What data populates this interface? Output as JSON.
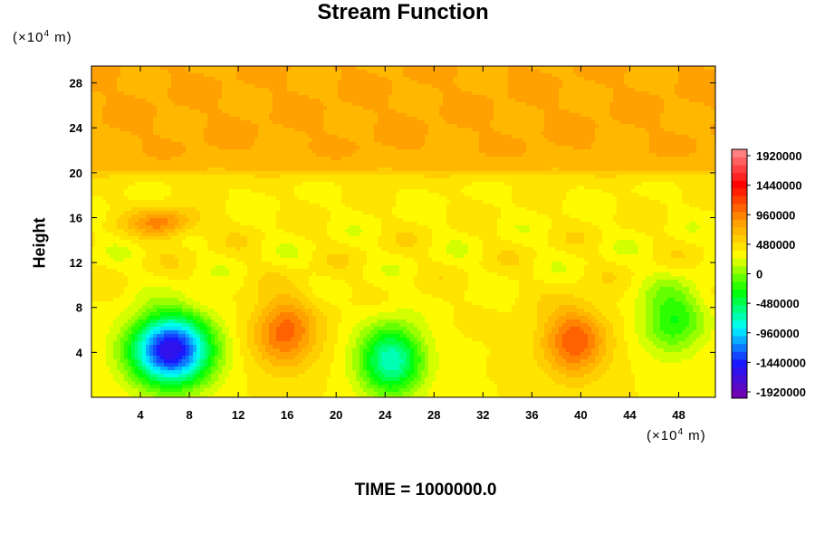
{
  "title": "Stream Function",
  "y_unit": {
    "prefix": "(×10",
    "exp": "4",
    "suffix": " m)"
  },
  "x_unit": {
    "prefix": "(×10",
    "exp": "4",
    "suffix": " m)"
  },
  "ylabel": "Height",
  "footer": "TIME = 1000000.0",
  "chart_data": {
    "type": "heatmap",
    "title": "Stream Function",
    "xlabel": "",
    "ylabel": "Height",
    "x_unit": "×10^4 m",
    "y_unit": "×10^4 m",
    "xlim": [
      0,
      51
    ],
    "ylim": [
      0,
      29.5
    ],
    "x_ticks": [
      4,
      8,
      12,
      16,
      20,
      24,
      28,
      32,
      36,
      40,
      44,
      48
    ],
    "y_ticks": [
      4,
      8,
      12,
      16,
      20,
      24,
      28
    ],
    "colorbar": {
      "min": -1920000,
      "max": 1920000,
      "levels": 32,
      "tick_labels": [
        "1920000",
        "1440000",
        "960000",
        "480000",
        "0",
        "-480000",
        "-960000",
        "-1440000",
        "-1920000"
      ],
      "colors": [
        "#7a00a8",
        "#1818ff",
        "#00ffff",
        "#00ff00",
        "#ffff00",
        "#ff9900",
        "#ff0000",
        "#ff9090"
      ]
    },
    "background_value": 360000,
    "upper_region": {
      "above_height": 20,
      "value": 720000
    },
    "features": [
      {
        "type": "min",
        "x": 6.5,
        "y": 4.2,
        "value": -1560000
      },
      {
        "type": "max",
        "x": 15.8,
        "y": 5.8,
        "value": 1020000
      },
      {
        "type": "min",
        "x": 24.5,
        "y": 3.3,
        "value": -700000
      },
      {
        "type": "max",
        "x": 39.5,
        "y": 5.0,
        "value": 1060000
      },
      {
        "type": "max",
        "x": 6.0,
        "y": 15.5,
        "value": 900000
      },
      {
        "type": "min",
        "x": 47.5,
        "y": 7.0,
        "value": -250000
      }
    ],
    "footer": "TIME = 1000000.0"
  }
}
